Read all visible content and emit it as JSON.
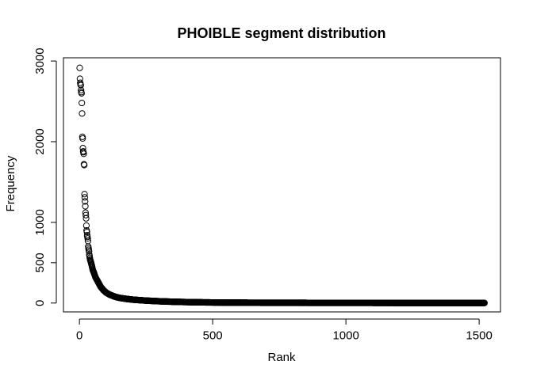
{
  "chart_data": {
    "type": "scatter",
    "title": "PHOIBLE segment distribution",
    "xlabel": "Rank",
    "ylabel": "Frequency",
    "xlim": [
      -60,
      1580
    ],
    "ylim": [
      -110,
      3040
    ],
    "x_ticks": [
      0,
      500,
      1000,
      1500
    ],
    "x_tick_labels": [
      "0",
      "500",
      "1000",
      "1500"
    ],
    "y_ticks": [
      0,
      500,
      1000,
      2000,
      3000
    ],
    "y_tick_labels": [
      "0",
      "500",
      "1000",
      "2000",
      "3000"
    ],
    "grid": false,
    "legend": "none",
    "marker": "open-circle",
    "n_points": 1520,
    "series": [
      {
        "x": [
          1,
          2,
          3,
          4,
          5,
          6,
          7,
          8,
          9,
          10,
          11,
          12,
          13,
          14,
          15,
          16,
          17,
          18,
          19,
          20,
          21,
          22,
          23,
          24,
          25,
          26,
          27,
          28,
          29,
          30,
          31,
          32,
          33,
          34,
          35,
          36,
          37,
          38,
          39,
          40,
          42,
          44,
          46,
          48,
          50,
          55,
          60,
          65,
          70,
          75,
          80,
          90,
          100,
          110,
          120,
          130,
          140,
          150,
          175,
          200,
          250,
          300,
          350,
          400,
          450,
          500,
          550,
          600,
          700,
          800,
          900,
          1000,
          1100,
          1200,
          1300,
          1400,
          1500,
          1520
        ],
        "y": [
          2915,
          2780,
          2730,
          2710,
          2700,
          2640,
          2615,
          2600,
          2480,
          2350,
          2060,
          2040,
          1920,
          1880,
          1870,
          1850,
          1720,
          1710,
          1350,
          1310,
          1260,
          1200,
          1120,
          1090,
          1050,
          960,
          900,
          880,
          840,
          820,
          800,
          770,
          700,
          680,
          660,
          640,
          600,
          580,
          560,
          540,
          520,
          495,
          470,
          440,
          410,
          370,
          320,
          290,
          260,
          230,
          200,
          160,
          130,
          110,
          95,
          82,
          72,
          64,
          52,
          42,
          30,
          22,
          16,
          12,
          9,
          7,
          5,
          4,
          3,
          3,
          2,
          2,
          2,
          1,
          1,
          1,
          1,
          1
        ]
      }
    ]
  }
}
